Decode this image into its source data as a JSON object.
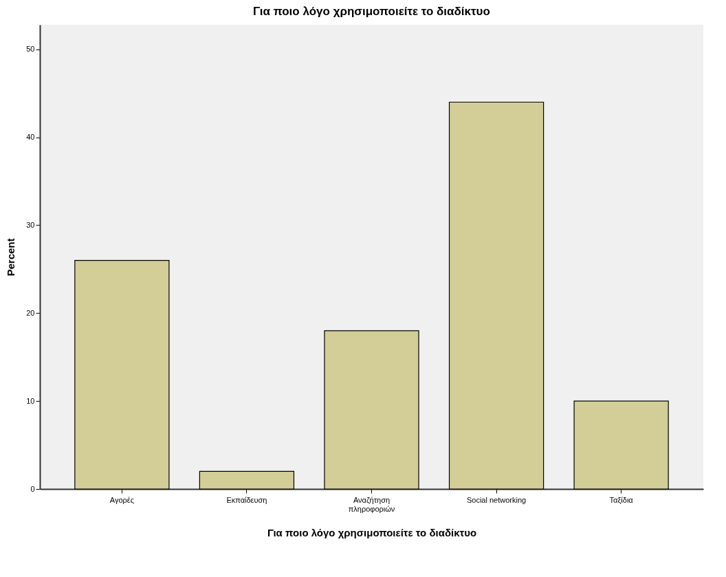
{
  "chart_data": {
    "type": "bar",
    "title": "Για ποιο λόγο χρησιμοποιείτε το διαδίκτυο",
    "xlabel": "Για ποιο λόγο χρησιμοποιείτε το διαδίκτυο",
    "ylabel": "Percent",
    "categories": [
      "Αγορές",
      "Εκπαίδευση",
      "Αναζήτηση πληροφοριών",
      "Social networking",
      "Ταξίδια"
    ],
    "values": [
      26,
      2,
      18,
      44,
      10
    ],
    "color": "#d3ce97",
    "ylim": [
      0,
      52.8
    ],
    "yticks": [
      0,
      10,
      20,
      30,
      40,
      50
    ],
    "grid": false
  }
}
